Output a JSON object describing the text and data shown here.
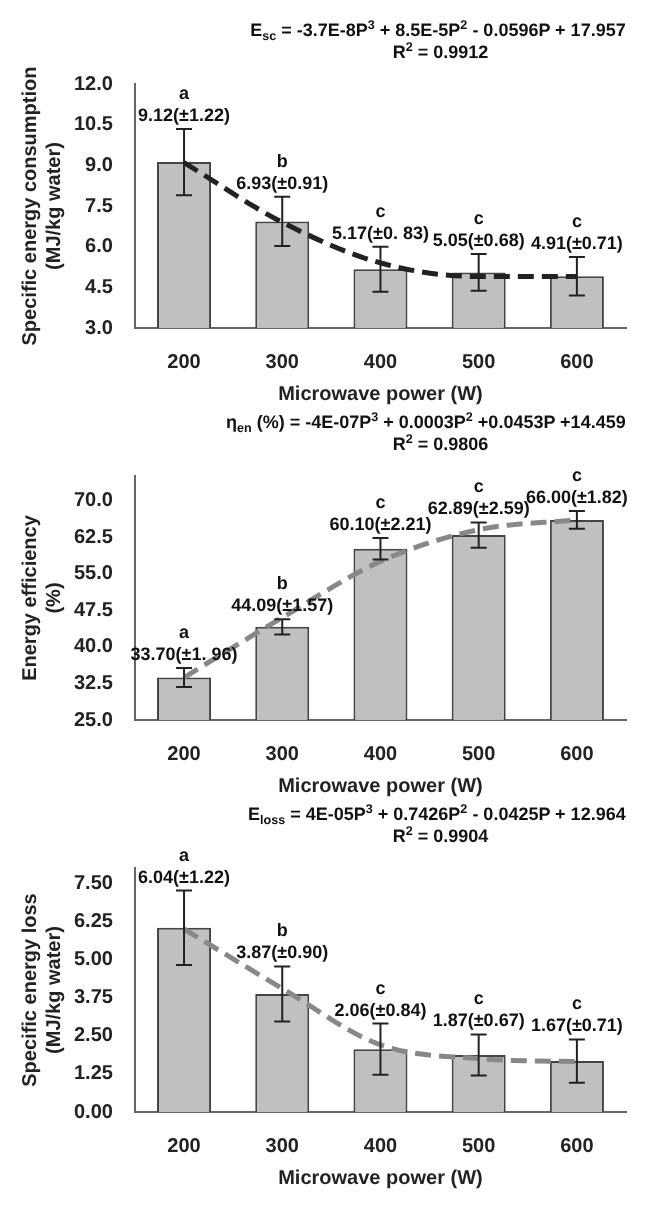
{
  "chart_data": [
    {
      "type": "bar",
      "xlabel": "Microwave power (W)",
      "ylabel": "Specific energy consumption (MJ/kg water)",
      "categories": [
        "200",
        "300",
        "400",
        "500",
        "600"
      ],
      "ylim": [
        3,
        12
      ],
      "yticks": [
        {
          "value": 3,
          "label": "3.0"
        },
        {
          "value": 4.5,
          "label": "4.5"
        },
        {
          "value": 6,
          "label": "6.0"
        },
        {
          "value": 7.5,
          "label": "7.5"
        },
        {
          "value": 9,
          "label": "9.0"
        },
        {
          "value": 10.5,
          "label": "10.5"
        },
        {
          "value": 12,
          "label": "12.0"
        }
      ],
      "series": [
        {
          "color": "#c0c0c0",
          "values": [
            9.12,
            6.93,
            5.17,
            5.05,
            4.91
          ],
          "errors": [
            1.22,
            0.91,
            0.83,
            0.68,
            0.71
          ],
          "value_labels": [
            "9.12(±1.22)",
            "6.93(±0.91)",
            "5.17(±0. 83)",
            "5.05(±0.68)",
            "4.91(±0.71)"
          ]
        },
        {
          "type": "line",
          "color": "#222222",
          "line_style": "dashed",
          "marker": "none",
          "values": [
            9.1,
            6.9,
            5.4,
            4.9,
            4.9
          ]
        }
      ],
      "annotations": [
        "E$_{sc}$ = -3.7E-8P$^{3}$ + 8.5E-5P$^{2}$ - 0.0596P + 17.957",
        "R$^{2}$ = 0.9912",
        "a",
        "b",
        "c",
        "c",
        "c"
      ]
    },
    {
      "type": "bar",
      "xlabel": "Microwave power (W)",
      "ylabel": "Energy efficiency (%)",
      "categories": [
        "200",
        "300",
        "400",
        "500",
        "600"
      ],
      "ylim": [
        25,
        75
      ],
      "yticks": [
        {
          "value": 25,
          "label": "25.0"
        },
        {
          "value": 32.5,
          "label": "32.5"
        },
        {
          "value": 40,
          "label": "40.0"
        },
        {
          "value": 47.5,
          "label": "47.5"
        },
        {
          "value": 55,
          "label": "55.0"
        },
        {
          "value": 62.5,
          "label": "62.5"
        },
        {
          "value": 70,
          "label": "70.0"
        }
      ],
      "series": [
        {
          "color": "#c0c0c0",
          "values": [
            33.7,
            44.09,
            60.1,
            62.89,
            66.0
          ],
          "errors": [
            1.96,
            1.57,
            2.21,
            2.59,
            1.82
          ],
          "value_labels": [
            "33.70(±1. 96)",
            "44.09(±1.57)",
            "60.10(±2.21)",
            "62.89(±2.59)",
            "66.00(±1.82)"
          ]
        },
        {
          "type": "line",
          "color": "#888888",
          "line_style": "dashed",
          "marker": "none",
          "values": [
            33.7,
            46,
            57.5,
            64,
            66
          ]
        }
      ],
      "annotations": [
        "η$_{en}$ (%) = -4E-07P$^{3}$ + 0.0003P$^{2}$ +0.0453P +14.459",
        "R$^{2}$ = 0.9806",
        "a",
        "b",
        "c",
        "c",
        "c"
      ]
    },
    {
      "type": "bar",
      "xlabel": "Microwave power (W)",
      "ylabel": "Specific energy loss (MJ/kg water)",
      "categories": [
        "200",
        "300",
        "400",
        "500",
        "600"
      ],
      "ylim": [
        0,
        8
      ],
      "yticks": [
        {
          "value": 0,
          "label": "0.00"
        },
        {
          "value": 1.25,
          "label": "1.25"
        },
        {
          "value": 2.5,
          "label": "2.50"
        },
        {
          "value": 3.75,
          "label": "3.75"
        },
        {
          "value": 5,
          "label": "5.00"
        },
        {
          "value": 6.25,
          "label": "6.25"
        },
        {
          "value": 7.5,
          "label": "7.50"
        }
      ],
      "series": [
        {
          "color": "#c0c0c0",
          "values": [
            6.04,
            3.87,
            2.06,
            1.87,
            1.67
          ],
          "errors": [
            1.22,
            0.9,
            0.84,
            0.67,
            0.71
          ],
          "value_labels": [
            "6.04(±1.22)",
            "3.87(±0.90)",
            "2.06(±0.84)",
            "1.87(±0.67)",
            "1.67(±0.71)"
          ]
        },
        {
          "type": "line",
          "color": "#888888",
          "line_style": "dashed",
          "marker": "none",
          "values": [
            6.0,
            4.05,
            2.2,
            1.75,
            1.65
          ]
        }
      ],
      "annotations": [
        "E$_{loss}$ = 4E-05P$^{3}$ + 0.7426P$^{2}$ - 0.0425P + 12.964",
        "R$^{2}$ = 0.9904",
        "a",
        "b",
        "c",
        "c",
        "c"
      ]
    }
  ]
}
